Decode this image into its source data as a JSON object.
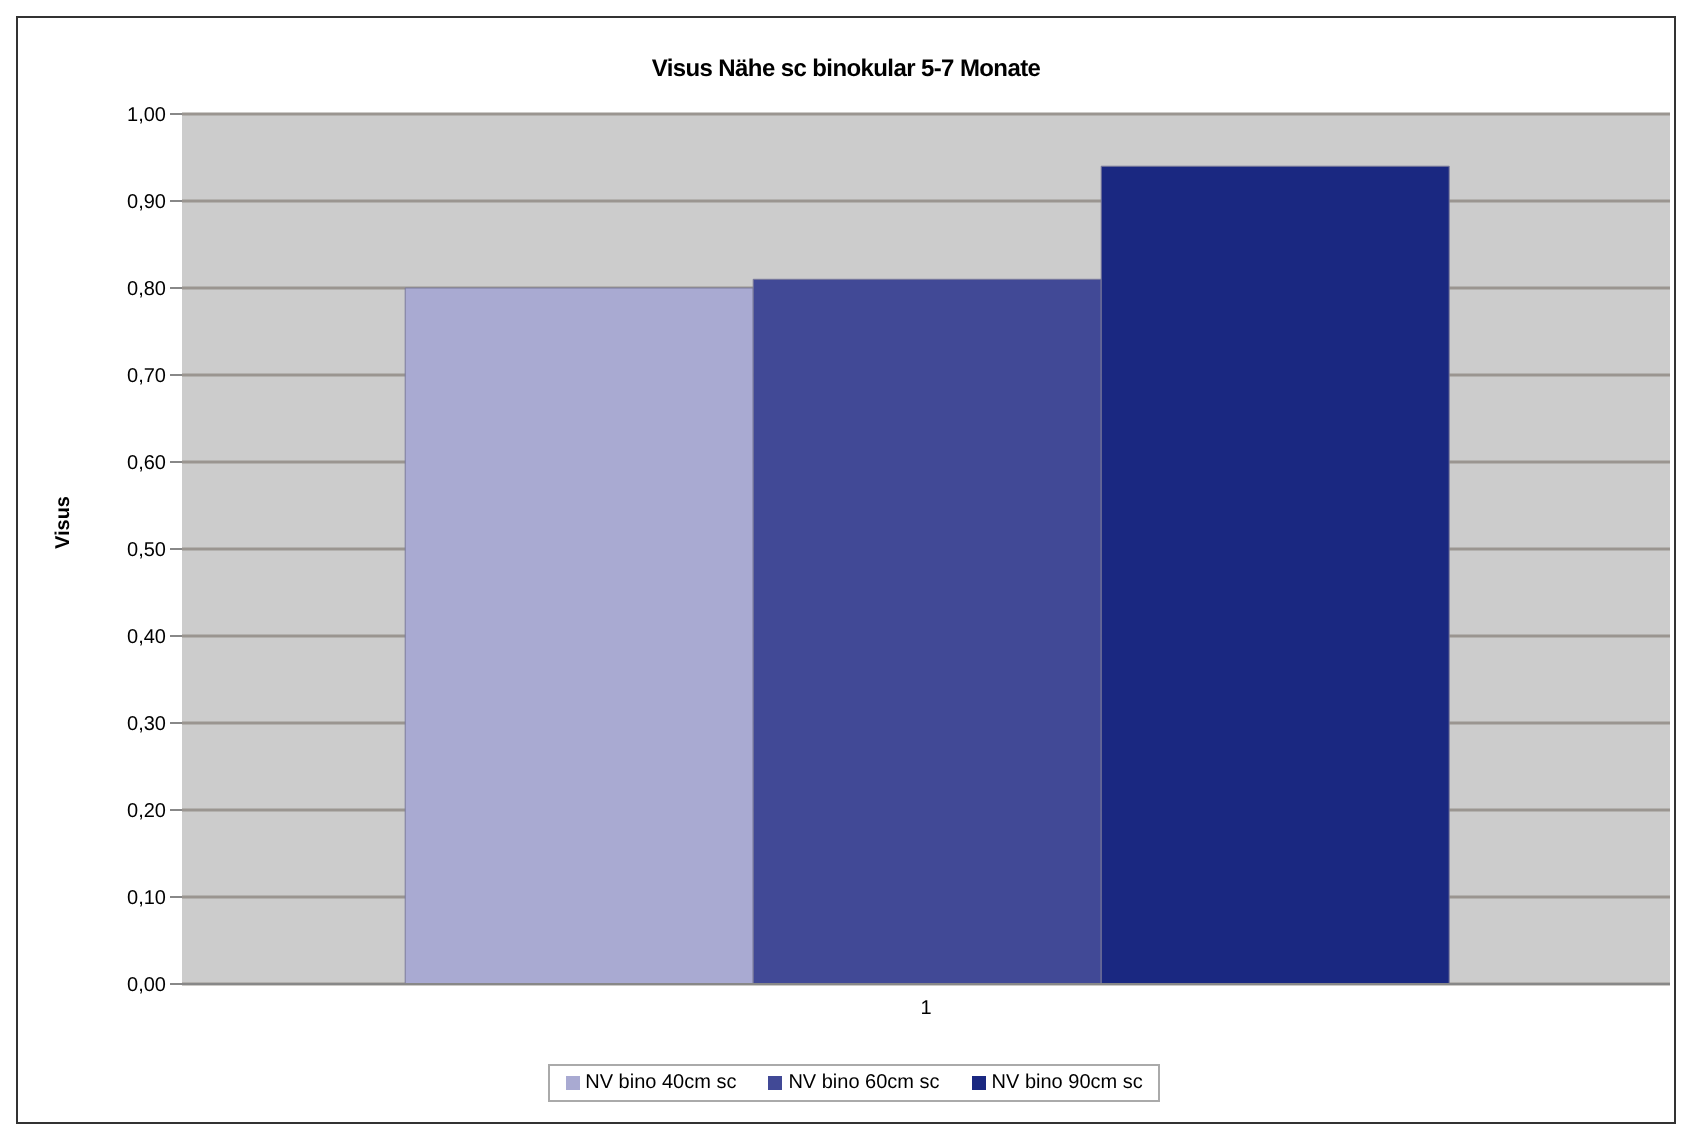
{
  "chart_data": {
    "type": "bar",
    "title": "Visus Nähe sc binokular 5-7 Monate",
    "ylabel": "Visus",
    "categories": [
      "1"
    ],
    "series": [
      {
        "name": "NV bino 40cm sc",
        "color": "#a9aad2",
        "values": [
          0.8
        ]
      },
      {
        "name": "NV bino 60cm sc",
        "color": "#414996",
        "values": [
          0.81
        ]
      },
      {
        "name": "NV bino 90cm sc",
        "color": "#1a2881",
        "values": [
          0.94
        ]
      }
    ],
    "ylim": [
      0,
      1
    ],
    "yticks": [
      {
        "value": 0,
        "label": "0,00"
      },
      {
        "value": 0.1,
        "label": "0,10"
      },
      {
        "value": 0.2,
        "label": "0,20"
      },
      {
        "value": 0.3,
        "label": "0,30"
      },
      {
        "value": 0.4,
        "label": "0,40"
      },
      {
        "value": 0.5,
        "label": "0,50"
      },
      {
        "value": 0.6,
        "label": "0,60"
      },
      {
        "value": 0.7,
        "label": "0,70"
      },
      {
        "value": 0.8,
        "label": "0,80"
      },
      {
        "value": 0.9,
        "label": "0,90"
      },
      {
        "value": 1,
        "label": "1,00"
      }
    ],
    "grid": "y",
    "legend": "bottom"
  }
}
